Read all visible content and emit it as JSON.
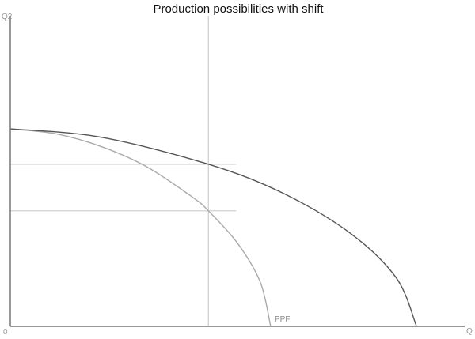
{
  "chart_data": {
    "type": "line",
    "title": "Production possibilities with shift",
    "xlabel": "Q",
    "ylabel": "Q2",
    "origin_label": "0",
    "xlim": [
      0,
      100
    ],
    "ylim": [
      0,
      100
    ],
    "grid": false,
    "series": [
      {
        "name": "PPF",
        "color": "#aaaaaa",
        "x": [
          0,
          10,
          20,
          30,
          40,
          43.6,
          50,
          55,
          57.3
        ],
        "y": [
          63.6,
          62.0,
          57.9,
          51.4,
          41.7,
          37.2,
          26.8,
          14.3,
          0
        ]
      },
      {
        "color": "#555555",
        "x": [
          0,
          20,
          43.6,
          60,
          75,
          85,
          89.4
        ],
        "y": [
          63.6,
          60.9,
          52.2,
          42.9,
          29.8,
          15.5,
          0
        ]
      }
    ],
    "reference_lines": {
      "vertical_x": 43.6,
      "horizontal_y": [
        52.2,
        37.2
      ],
      "horizontal_x_end": 49.7,
      "color": "#cccccc"
    }
  }
}
